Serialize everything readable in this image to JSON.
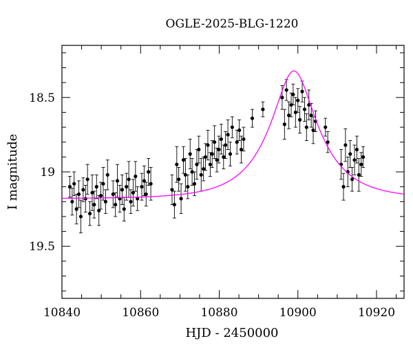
{
  "chart_data": {
    "type": "scatter",
    "title": "OGLE-2025-BLG-1220",
    "xlabel": "HJD - 2450000",
    "ylabel": "I magnitude",
    "xlim": [
      10840,
      10927
    ],
    "ylim": [
      19.85,
      18.15
    ],
    "y_inverted": true,
    "x_ticks": [
      10840,
      10860,
      10880,
      10900,
      10920
    ],
    "y_ticks": [
      18.5,
      19,
      19.5
    ],
    "x_tick_labels": [
      "10840",
      "10860",
      "10880",
      "10900",
      "10920"
    ],
    "y_tick_labels": [
      "18.5",
      "19",
      "19.5"
    ],
    "grid": false,
    "legend": "none",
    "colors": {
      "points": "#000000",
      "model": "#ff00ff"
    },
    "model": {
      "t0": 10899.0,
      "tE": 12.6,
      "u0": 0.38,
      "baseline": 19.18,
      "fs": 0.68
    },
    "series": [
      {
        "kind": "points",
        "x": [
          10842.0,
          10842.6,
          10843.1,
          10843.7,
          10844.3,
          10844.8,
          10845.4,
          10846.0,
          10846.5,
          10847.1,
          10847.7,
          10848.2,
          10848.8,
          10849.4,
          10849.9,
          10850.5,
          10851.1,
          10851.6,
          10853.0,
          10853.6,
          10854.1,
          10854.7,
          10855.3,
          10855.8,
          10856.4,
          10857.0,
          10857.5,
          10858.1,
          10858.7,
          10859.2,
          10860.3,
          10860.9,
          10861.4,
          10862.0,
          10862.6,
          10868.0,
          10868.6,
          10869.2,
          10869.7,
          10870.3,
          10870.9,
          10871.4,
          10872.0,
          10872.6,
          10873.1,
          10873.7,
          10874.3,
          10874.8,
          10875.4,
          10876.0,
          10876.5,
          10877.1,
          10877.7,
          10878.2,
          10878.8,
          10879.4,
          10879.9,
          10880.5,
          10881.1,
          10881.6,
          10882.2,
          10882.8,
          10883.3,
          10884.5,
          10885.1,
          10885.6,
          10886.2,
          10888.4,
          10891.1,
          10896.0,
          10896.6,
          10897.1,
          10897.7,
          10898.3,
          10898.8,
          10899.4,
          10900.0,
          10900.5,
          10901.1,
          10901.7,
          10902.2,
          10902.8,
          10903.4,
          10903.9,
          10904.5,
          10907.0,
          10907.6,
          10911.0,
          10911.6,
          10912.1,
          10912.7,
          10913.3,
          10913.8,
          10914.4,
          10915.0,
          10915.5,
          10916.1,
          10916.6
        ],
        "y": [
          19.1,
          19.2,
          19.08,
          19.25,
          19.15,
          19.3,
          19.12,
          19.18,
          19.05,
          19.28,
          19.14,
          19.22,
          19.1,
          19.26,
          19.16,
          19.08,
          19.2,
          19.02,
          19.15,
          19.22,
          19.06,
          19.18,
          19.12,
          19.25,
          19.1,
          19.05,
          19.2,
          19.14,
          19.03,
          19.18,
          19.1,
          19.06,
          19.15,
          19.0,
          19.08,
          19.12,
          19.22,
          18.95,
          19.05,
          19.18,
          18.92,
          19.02,
          19.1,
          18.88,
          19.0,
          19.08,
          18.95,
          18.85,
          19.02,
          18.98,
          18.9,
          18.82,
          18.95,
          18.88,
          18.8,
          18.92,
          18.85,
          18.78,
          18.9,
          18.82,
          18.75,
          18.88,
          18.7,
          18.8,
          18.72,
          18.85,
          18.78,
          18.64,
          18.58,
          18.5,
          18.68,
          18.45,
          18.62,
          18.55,
          18.48,
          18.6,
          18.52,
          18.65,
          18.46,
          18.58,
          18.7,
          18.55,
          18.62,
          18.72,
          18.66,
          18.7,
          18.8,
          18.95,
          19.1,
          18.82,
          19.0,
          18.88,
          19.05,
          18.92,
          18.85,
          19.02,
          18.95,
          18.9
        ],
        "err": [
          0.07,
          0.09,
          0.08,
          0.1,
          0.09,
          0.11,
          0.08,
          0.09,
          0.1,
          0.08,
          0.12,
          0.09,
          0.08,
          0.1,
          0.09,
          0.11,
          0.08,
          0.1,
          0.09,
          0.08,
          0.11,
          0.09,
          0.1,
          0.08,
          0.09,
          0.12,
          0.08,
          0.09,
          0.1,
          0.08,
          0.09,
          0.1,
          0.08,
          0.09,
          0.11,
          0.1,
          0.09,
          0.12,
          0.08,
          0.1,
          0.09,
          0.11,
          0.08,
          0.1,
          0.09,
          0.08,
          0.1,
          0.09,
          0.11,
          0.08,
          0.09,
          0.1,
          0.08,
          0.09,
          0.11,
          0.08,
          0.09,
          0.1,
          0.08,
          0.09,
          0.1,
          0.08,
          0.07,
          0.08,
          0.07,
          0.09,
          0.08,
          0.06,
          0.05,
          0.08,
          0.1,
          0.07,
          0.09,
          0.08,
          0.07,
          0.1,
          0.08,
          0.09,
          0.07,
          0.08,
          0.09,
          0.1,
          0.08,
          0.09,
          0.07,
          0.06,
          0.07,
          0.1,
          0.09,
          0.11,
          0.1,
          0.09,
          0.08,
          0.1,
          0.09,
          0.11,
          0.08,
          0.07
        ]
      }
    ]
  }
}
